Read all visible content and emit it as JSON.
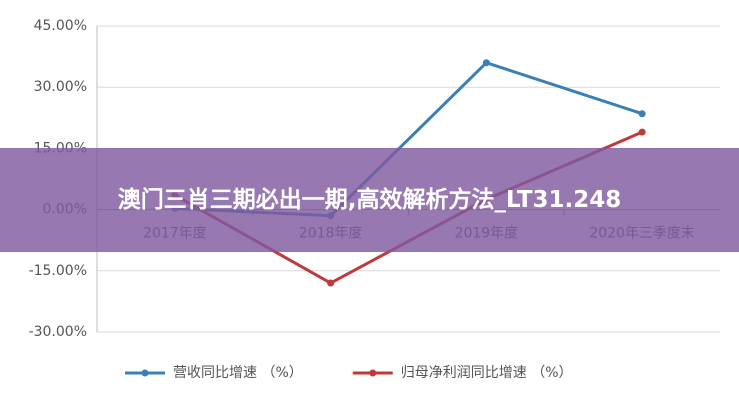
{
  "chart_data": {
    "type": "line",
    "categories": [
      "2017年度",
      "2018年度",
      "2019年度",
      "2020年三季度末"
    ],
    "series": [
      {
        "name": "营收同比增速 （%）",
        "color": "#3a7fb5",
        "values": [
          0.3,
          -1.5,
          36,
          23.5
        ]
      },
      {
        "name": "归母净利润同比增速 （%）",
        "color": "#c0393b",
        "values": [
          3.5,
          -18,
          2.5,
          19
        ]
      }
    ],
    "ylim": [
      -30,
      45
    ],
    "yticks": [
      {
        "value": -30,
        "label": "-30.00%"
      },
      {
        "value": -15,
        "label": "-15.00%"
      },
      {
        "value": 0,
        "label": "0.00%"
      },
      {
        "value": 15,
        "label": "15.00%"
      },
      {
        "value": 30,
        "label": "30.00%"
      },
      {
        "value": 45,
        "label": "45.00%"
      }
    ],
    "grid": true,
    "legend": "bottom"
  },
  "banner": {
    "text": "澳门三肖三期必出一期,高效解析方法_LT31.248"
  }
}
